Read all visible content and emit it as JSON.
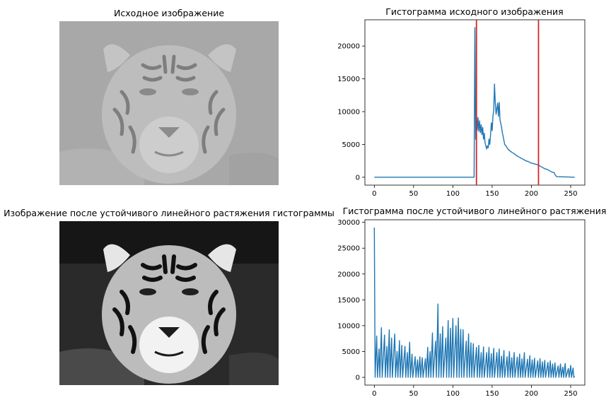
{
  "panels": {
    "top_left": {
      "title": "Исходное изображение"
    },
    "bottom_left": {
      "title": "Изображение после устойчивого линейного растяжения гистограммы"
    }
  },
  "chart_data": [
    {
      "type": "line",
      "title": "Гистограмма исходного изображения",
      "xlabel": "",
      "ylabel": "",
      "xlim": [
        -12,
        268
      ],
      "ylim": [
        -1200,
        24000
      ],
      "xticks": [
        0,
        50,
        100,
        150,
        200,
        250
      ],
      "yticks": [
        0,
        5000,
        10000,
        15000,
        20000
      ],
      "grid": false,
      "line_color": "#1f77b4",
      "x": [
        0,
        127,
        128,
        129,
        130,
        131,
        132,
        133,
        134,
        135,
        136,
        137,
        138,
        139,
        140,
        141,
        142,
        143,
        144,
        145,
        146,
        147,
        148,
        149,
        150,
        151,
        152,
        153,
        154,
        155,
        156,
        157,
        158,
        159,
        160,
        161,
        162,
        163,
        164,
        165,
        166,
        168,
        170,
        172,
        175,
        178,
        181,
        184,
        187,
        190,
        193,
        196,
        199,
        202,
        205,
        208,
        211,
        214,
        217,
        220,
        223,
        226,
        229,
        230,
        232,
        255
      ],
      "y": [
        0,
        0,
        22800,
        5800,
        9500,
        7200,
        9100,
        7000,
        8600,
        6800,
        8000,
        6500,
        7600,
        5800,
        6700,
        5200,
        4800,
        4300,
        4800,
        4500,
        5800,
        5000,
        6500,
        8300,
        7100,
        9300,
        10200,
        14200,
        11300,
        9600,
        10400,
        11300,
        9300,
        11400,
        8700,
        8200,
        7600,
        6800,
        6200,
        5600,
        5000,
        4700,
        4300,
        4100,
        3800,
        3600,
        3300,
        3100,
        2900,
        2700,
        2500,
        2400,
        2200,
        2100,
        2000,
        1900,
        1700,
        1500,
        1300,
        1200,
        1000,
        800,
        700,
        400,
        100,
        0
      ],
      "vlines": [
        130,
        209
      ],
      "vline_color": "#d62728"
    },
    {
      "type": "line",
      "title": "Гистограмма после устойчивого линейного растяжения",
      "xlabel": "",
      "ylabel": "",
      "xlim": [
        -12,
        268
      ],
      "ylim": [
        -1500,
        30500
      ],
      "xticks": [
        0,
        50,
        100,
        150,
        200,
        250
      ],
      "yticks": [
        0,
        5000,
        10000,
        15000,
        20000,
        25000,
        30000
      ],
      "grid": false,
      "line_color": "#1f77b4",
      "x": [
        0,
        1,
        3,
        4,
        6,
        7,
        9,
        10,
        13,
        14,
        16,
        17,
        19,
        20,
        22,
        23,
        26,
        27,
        29,
        30,
        32,
        33,
        35,
        36,
        39,
        40,
        42,
        43,
        45,
        46,
        48,
        49,
        52,
        53,
        55,
        56,
        58,
        59,
        61,
        62,
        65,
        66,
        68,
        69,
        71,
        72,
        74,
        75,
        78,
        79,
        81,
        82,
        84,
        85,
        87,
        88,
        91,
        92,
        94,
        95,
        97,
        98,
        100,
        101,
        104,
        105,
        107,
        108,
        110,
        111,
        113,
        114,
        117,
        118,
        120,
        121,
        123,
        124,
        126,
        127,
        130,
        131,
        133,
        134,
        136,
        137,
        139,
        140,
        143,
        144,
        146,
        147,
        149,
        150,
        152,
        153,
        156,
        157,
        159,
        160,
        162,
        163,
        165,
        166,
        169,
        170,
        172,
        173,
        175,
        176,
        178,
        179,
        182,
        183,
        185,
        186,
        188,
        189,
        191,
        192,
        195,
        196,
        198,
        199,
        201,
        202,
        204,
        205,
        208,
        209,
        211,
        212,
        214,
        215,
        217,
        218,
        221,
        222,
        224,
        225,
        227,
        228,
        230,
        231,
        234,
        235,
        237,
        238,
        240,
        241,
        243,
        244,
        247,
        248,
        250,
        251,
        253,
        254,
        255
      ],
      "y": [
        29000,
        0,
        8000,
        0,
        5500,
        0,
        9600,
        0,
        8200,
        0,
        6000,
        0,
        9200,
        0,
        7600,
        0,
        8400,
        0,
        5000,
        0,
        7100,
        0,
        6200,
        0,
        6000,
        0,
        4800,
        0,
        6800,
        0,
        4500,
        0,
        4000,
        0,
        3400,
        0,
        4000,
        0,
        3800,
        0,
        3600,
        0,
        5800,
        0,
        5000,
        0,
        8600,
        0,
        7000,
        0,
        14200,
        0,
        8400,
        0,
        9800,
        0,
        7600,
        0,
        11000,
        0,
        9500,
        0,
        11400,
        0,
        10000,
        0,
        11500,
        0,
        9300,
        0,
        9200,
        0,
        7000,
        0,
        8400,
        0,
        6700,
        0,
        6500,
        0,
        5800,
        0,
        6200,
        0,
        4800,
        0,
        5900,
        0,
        4800,
        0,
        5800,
        0,
        4600,
        0,
        5600,
        0,
        4800,
        0,
        5500,
        0,
        4100,
        0,
        5200,
        0,
        4000,
        0,
        5000,
        0,
        3800,
        0,
        4800,
        0,
        3900,
        0,
        4500,
        0,
        3600,
        0,
        4800,
        0,
        3500,
        0,
        4200,
        0,
        3400,
        0,
        3700,
        0,
        3200,
        0,
        3600,
        0,
        3000,
        0,
        3300,
        0,
        2900,
        0,
        3200,
        0,
        2600,
        0,
        2800,
        0,
        2200,
        0,
        2600,
        0,
        2000,
        0,
        2700,
        0,
        1700,
        0,
        2300,
        0,
        1800,
        0,
        200
      ]
    }
  ]
}
